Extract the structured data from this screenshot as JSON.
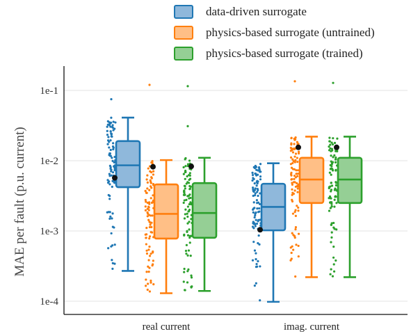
{
  "chart_data": {
    "type": "box",
    "ylabel": "MAE per fault (p.u. current)",
    "yscale": "log",
    "ylim": [
      7e-05,
      0.2
    ],
    "yticks": [
      {
        "value": 0.1,
        "label": "1e-1"
      },
      {
        "value": 0.01,
        "label": "1e-2"
      },
      {
        "value": 0.001,
        "label": "1e-3"
      },
      {
        "value": 0.0001,
        "label": "1e-4"
      }
    ],
    "categories": [
      "real current",
      "imag. current"
    ],
    "grid": "horizontal",
    "legend_position": "top",
    "series": [
      {
        "name": "data-driven surrogate",
        "color": "#1f77b4",
        "fill": "#8fb8db",
        "boxes": [
          {
            "min": 0.00027,
            "q1": 0.0042,
            "median": 0.0086,
            "q3": 0.019,
            "max": 0.041,
            "mean": 0.0057
          },
          {
            "min": 9.8e-05,
            "q1": 0.00102,
            "median": 0.0022,
            "q3": 0.0047,
            "max": 0.0092,
            "mean": 0.00104
          }
        ]
      },
      {
        "name": "physics-based surrogate (untrained)",
        "color": "#ff7f0e",
        "fill": "#ffbf86",
        "boxes": [
          {
            "min": 0.00013,
            "q1": 0.00078,
            "median": 0.00175,
            "q3": 0.0046,
            "max": 0.0102,
            "mean": 0.0082
          },
          {
            "min": 0.00022,
            "q1": 0.0025,
            "median": 0.0054,
            "q3": 0.011,
            "max": 0.022,
            "mean": 0.0155
          }
        ]
      },
      {
        "name": "physics-based surrogate (trained)",
        "color": "#2ca02c",
        "fill": "#95cf95",
        "boxes": [
          {
            "min": 0.00014,
            "q1": 0.0008,
            "median": 0.0018,
            "q3": 0.0048,
            "max": 0.011,
            "mean": 0.0083
          },
          {
            "min": 0.00022,
            "q1": 0.0025,
            "median": 0.0054,
            "q3": 0.011,
            "max": 0.022,
            "mean": 0.0155
          }
        ]
      }
    ],
    "outliers": [
      {
        "series": 1,
        "category": 0,
        "value": 0.12
      },
      {
        "series": 2,
        "category": 0,
        "value": 0.115
      },
      {
        "series": 2,
        "category": 0,
        "value": 0.031
      },
      {
        "series": 0,
        "category": 0,
        "value": 0.075
      },
      {
        "series": 1,
        "category": 1,
        "value": 0.135
      },
      {
        "series": 2,
        "category": 1,
        "value": 0.128
      }
    ]
  }
}
